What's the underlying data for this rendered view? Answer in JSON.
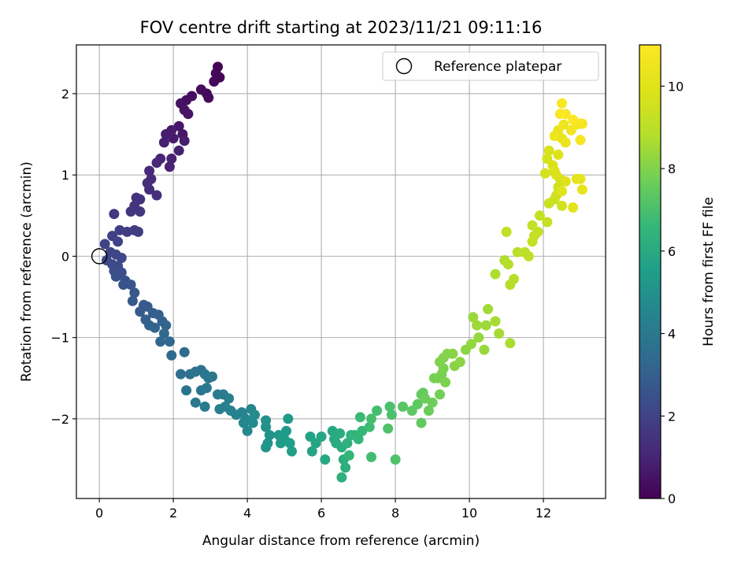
{
  "chart_data": {
    "type": "scatter",
    "title": "FOV centre drift starting at 2023/11/21 09:11:16",
    "xlabel": "Angular distance from reference (arcmin)",
    "ylabel": "Rotation from reference (arcmin)",
    "colorbar_label": "Hours from first FF file",
    "colormap": "viridis",
    "xlim": [
      -0.62,
      13.68
    ],
    "ylim": [
      -2.98,
      2.6
    ],
    "clim": [
      0,
      11
    ],
    "x_ticks": [
      0,
      2,
      4,
      6,
      8,
      10,
      12
    ],
    "x_tick_labels": [
      "0",
      "2",
      "4",
      "6",
      "8",
      "10",
      "12"
    ],
    "y_ticks": [
      -2,
      -1,
      0,
      1,
      2
    ],
    "y_tick_labels": [
      "−2",
      "−1",
      "0",
      "1",
      "2"
    ],
    "colorbar_ticks": [
      0,
      2,
      4,
      6,
      8,
      10
    ],
    "colorbar_tick_labels": [
      "0",
      "2",
      "4",
      "6",
      "8",
      "10"
    ],
    "grid": true,
    "legend": {
      "placement": "top-right",
      "label": "Reference platepar"
    },
    "reference_point": {
      "x": 0,
      "y": 0
    },
    "points": [
      [
        3.2,
        2.33,
        0.1
      ],
      [
        3.25,
        2.2,
        0.12
      ],
      [
        3.1,
        2.15,
        0.15
      ],
      [
        3.15,
        2.25,
        0.14
      ],
      [
        2.9,
        2.0,
        0.22
      ],
      [
        2.95,
        1.95,
        0.25
      ],
      [
        2.75,
        2.05,
        0.28
      ],
      [
        2.5,
        1.97,
        0.35
      ],
      [
        2.35,
        1.92,
        0.4
      ],
      [
        2.2,
        1.88,
        0.45
      ],
      [
        2.3,
        1.8,
        0.5
      ],
      [
        2.4,
        1.75,
        0.52
      ],
      [
        2.15,
        1.6,
        0.6
      ],
      [
        2.25,
        1.5,
        0.65
      ],
      [
        2.0,
        1.45,
        0.7
      ],
      [
        1.95,
        1.55,
        0.72
      ],
      [
        1.8,
        1.5,
        0.78
      ],
      [
        1.75,
        1.4,
        0.85
      ],
      [
        2.3,
        1.42,
        0.8
      ],
      [
        2.15,
        1.3,
        0.9
      ],
      [
        1.95,
        1.2,
        0.95
      ],
      [
        1.9,
        1.1,
        1.0
      ],
      [
        1.65,
        1.2,
        1.05
      ],
      [
        1.55,
        1.15,
        1.1
      ],
      [
        1.35,
        1.05,
        1.15
      ],
      [
        1.4,
        0.95,
        1.2
      ],
      [
        1.3,
        0.9,
        1.25
      ],
      [
        1.35,
        0.82,
        1.3
      ],
      [
        1.55,
        0.75,
        1.35
      ],
      [
        1.1,
        0.7,
        1.4
      ],
      [
        1.0,
        0.72,
        1.45
      ],
      [
        0.95,
        0.62,
        1.5
      ],
      [
        0.85,
        0.55,
        1.55
      ],
      [
        1.1,
        0.55,
        1.6
      ],
      [
        0.4,
        0.52,
        1.6
      ],
      [
        0.95,
        0.32,
        1.7
      ],
      [
        1.05,
        0.3,
        1.75
      ],
      [
        0.75,
        0.3,
        1.8
      ],
      [
        0.55,
        0.32,
        1.85
      ],
      [
        0.35,
        0.25,
        1.9
      ],
      [
        0.5,
        0.18,
        1.95
      ],
      [
        0.15,
        0.15,
        2.0
      ],
      [
        0.3,
        0.05,
        2.05
      ],
      [
        0.45,
        0.02,
        2.1
      ],
      [
        0.6,
        -0.02,
        2.15
      ],
      [
        0.2,
        -0.05,
        2.2
      ],
      [
        0.35,
        -0.1,
        2.25
      ],
      [
        0.5,
        -0.12,
        2.3
      ],
      [
        0.4,
        -0.18,
        2.35
      ],
      [
        0.6,
        -0.2,
        2.4
      ],
      [
        0.45,
        -0.25,
        2.45
      ],
      [
        0.7,
        -0.3,
        2.5
      ],
      [
        0.65,
        -0.35,
        2.55
      ],
      [
        0.85,
        -0.35,
        2.6
      ],
      [
        0.95,
        -0.45,
        2.65
      ],
      [
        0.9,
        -0.55,
        2.7
      ],
      [
        1.2,
        -0.6,
        2.75
      ],
      [
        1.3,
        -0.62,
        2.8
      ],
      [
        1.1,
        -0.68,
        2.85
      ],
      [
        1.45,
        -0.7,
        2.9
      ],
      [
        1.25,
        -0.78,
        2.95
      ],
      [
        1.6,
        -0.72,
        3.0
      ],
      [
        1.7,
        -0.8,
        3.05
      ],
      [
        1.35,
        -0.85,
        3.1
      ],
      [
        1.5,
        -0.88,
        3.15
      ],
      [
        1.8,
        -0.85,
        3.2
      ],
      [
        1.75,
        -0.95,
        3.25
      ],
      [
        1.65,
        -1.05,
        3.3
      ],
      [
        1.9,
        -1.05,
        3.35
      ],
      [
        1.95,
        -1.22,
        3.4
      ],
      [
        2.3,
        -1.18,
        3.5
      ],
      [
        2.2,
        -1.45,
        3.6
      ],
      [
        2.45,
        -1.45,
        3.7
      ],
      [
        2.6,
        -1.42,
        3.75
      ],
      [
        2.75,
        -1.4,
        3.8
      ],
      [
        2.85,
        -1.45,
        3.85
      ],
      [
        2.95,
        -1.5,
        3.9
      ],
      [
        3.05,
        -1.48,
        3.95
      ],
      [
        2.35,
        -1.65,
        3.8
      ],
      [
        2.75,
        -1.65,
        3.9
      ],
      [
        2.9,
        -1.62,
        3.95
      ],
      [
        2.6,
        -1.8,
        4.0
      ],
      [
        2.85,
        -1.85,
        4.05
      ],
      [
        3.2,
        -1.7,
        4.1
      ],
      [
        3.35,
        -1.7,
        4.15
      ],
      [
        3.5,
        -1.75,
        4.2
      ],
      [
        3.25,
        -1.88,
        4.25
      ],
      [
        3.4,
        -1.85,
        4.3
      ],
      [
        3.55,
        -1.9,
        4.35
      ],
      [
        3.7,
        -1.95,
        4.4
      ],
      [
        3.85,
        -1.92,
        4.45
      ],
      [
        3.95,
        -2.0,
        4.5
      ],
      [
        4.1,
        -1.88,
        4.55
      ],
      [
        3.9,
        -2.05,
        4.6
      ],
      [
        4.0,
        -2.15,
        4.65
      ],
      [
        4.15,
        -2.05,
        4.7
      ],
      [
        4.2,
        -1.95,
        4.8
      ],
      [
        4.5,
        -2.02,
        4.95
      ],
      [
        4.5,
        -2.1,
        5.0
      ],
      [
        4.6,
        -2.2,
        5.05
      ],
      [
        4.55,
        -2.3,
        5.1
      ],
      [
        4.5,
        -2.35,
        5.15
      ],
      [
        4.85,
        -2.2,
        5.25
      ],
      [
        5.1,
        -2.0,
        5.35
      ],
      [
        5.05,
        -2.15,
        5.4
      ],
      [
        5.0,
        -2.25,
        5.45
      ],
      [
        4.9,
        -2.3,
        5.45
      ],
      [
        5.15,
        -2.3,
        5.5
      ],
      [
        5.2,
        -2.4,
        5.55
      ],
      [
        5.7,
        -2.22,
        5.7
      ],
      [
        5.75,
        -2.4,
        5.75
      ],
      [
        5.85,
        -2.3,
        5.8
      ],
      [
        6.0,
        -2.22,
        5.85
      ],
      [
        6.1,
        -2.5,
        5.9
      ],
      [
        6.3,
        -2.15,
        5.95
      ],
      [
        6.35,
        -2.25,
        6.0
      ],
      [
        6.4,
        -2.3,
        6.05
      ],
      [
        6.5,
        -2.18,
        6.1
      ],
      [
        6.55,
        -2.35,
        6.15
      ],
      [
        6.6,
        -2.5,
        6.2
      ],
      [
        6.65,
        -2.6,
        6.25
      ],
      [
        6.55,
        -2.72,
        6.3
      ],
      [
        6.7,
        -2.3,
        6.35
      ],
      [
        6.8,
        -2.2,
        6.4
      ],
      [
        6.75,
        -2.45,
        6.45
      ],
      [
        6.9,
        -2.2,
        6.5
      ],
      [
        7.0,
        -2.25,
        6.55
      ],
      [
        7.1,
        -2.15,
        6.6
      ],
      [
        7.05,
        -1.98,
        6.7
      ],
      [
        7.3,
        -2.1,
        6.8
      ],
      [
        7.5,
        -1.9,
        6.9
      ],
      [
        7.35,
        -2.0,
        6.95
      ],
      [
        7.85,
        -1.85,
        7.0
      ],
      [
        7.9,
        -1.95,
        7.05
      ],
      [
        8.0,
        -2.5,
        7.1
      ],
      [
        7.35,
        -2.47,
        6.85
      ],
      [
        7.8,
        -2.12,
        7.1
      ],
      [
        8.2,
        -1.85,
        7.25
      ],
      [
        8.45,
        -1.9,
        7.35
      ],
      [
        8.6,
        -1.82,
        7.4
      ],
      [
        8.7,
        -1.7,
        7.5
      ],
      [
        8.75,
        -1.68,
        7.55
      ],
      [
        8.8,
        -1.75,
        7.6
      ],
      [
        8.9,
        -1.9,
        7.62
      ],
      [
        9.0,
        -1.8,
        7.65
      ],
      [
        8.7,
        -2.05,
        7.45
      ],
      [
        9.2,
        -1.7,
        7.75
      ],
      [
        9.15,
        -1.5,
        7.8
      ],
      [
        9.25,
        -1.45,
        7.85
      ],
      [
        9.35,
        -1.55,
        7.9
      ],
      [
        9.05,
        -1.5,
        7.85
      ],
      [
        9.3,
        -1.38,
        7.92
      ],
      [
        9.2,
        -1.3,
        7.95
      ],
      [
        9.3,
        -1.25,
        8.0
      ],
      [
        9.4,
        -1.2,
        8.05
      ],
      [
        9.55,
        -1.2,
        8.1
      ],
      [
        9.6,
        -1.35,
        8.1
      ],
      [
        9.75,
        -1.3,
        8.15
      ],
      [
        9.9,
        -1.15,
        8.2
      ],
      [
        10.05,
        -1.08,
        8.25
      ],
      [
        10.25,
        -1.0,
        8.3
      ],
      [
        10.4,
        -1.15,
        8.35
      ],
      [
        10.1,
        -0.75,
        8.4
      ],
      [
        10.2,
        -0.85,
        8.45
      ],
      [
        10.45,
        -0.85,
        8.45
      ],
      [
        10.5,
        -0.65,
        8.5
      ],
      [
        10.8,
        -0.95,
        8.55
      ],
      [
        10.7,
        -0.8,
        8.6
      ],
      [
        11.1,
        -1.07,
        8.65
      ],
      [
        10.7,
        -0.22,
        8.7
      ],
      [
        10.95,
        -0.05,
        8.75
      ],
      [
        11.05,
        -0.1,
        8.8
      ],
      [
        11.1,
        -0.35,
        8.85
      ],
      [
        11.2,
        -0.28,
        8.9
      ],
      [
        11.3,
        0.05,
        8.95
      ],
      [
        11.5,
        0.05,
        9.0
      ],
      [
        11.6,
        0.0,
        9.05
      ],
      [
        11.0,
        0.3,
        9.1
      ],
      [
        11.7,
        0.38,
        9.15
      ],
      [
        11.85,
        0.3,
        9.2
      ],
      [
        11.75,
        0.25,
        9.2
      ],
      [
        11.7,
        0.18,
        9.25
      ],
      [
        11.9,
        0.5,
        9.25
      ],
      [
        12.1,
        0.42,
        9.3
      ],
      [
        12.15,
        0.65,
        9.35
      ],
      [
        12.3,
        0.7,
        9.4
      ],
      [
        12.35,
        0.75,
        9.45
      ],
      [
        12.4,
        0.85,
        9.5
      ],
      [
        12.45,
        0.95,
        9.55
      ],
      [
        12.5,
        0.62,
        9.6
      ],
      [
        12.05,
        1.02,
        9.65
      ],
      [
        12.1,
        1.2,
        9.7
      ],
      [
        12.15,
        1.3,
        9.75
      ],
      [
        12.25,
        1.12,
        9.8
      ],
      [
        12.3,
        1.05,
        9.85
      ],
      [
        12.35,
        1.0,
        9.9
      ],
      [
        12.4,
        1.25,
        9.95
      ],
      [
        12.6,
        0.92,
        10.0
      ],
      [
        12.5,
        0.8,
        10.05
      ],
      [
        12.8,
        0.6,
        10.1
      ],
      [
        12.9,
        0.95,
        10.15
      ],
      [
        13.0,
        0.95,
        10.2
      ],
      [
        13.05,
        0.82,
        10.25
      ],
      [
        12.5,
        1.45,
        10.3
      ],
      [
        12.6,
        1.4,
        10.35
      ],
      [
        12.4,
        1.55,
        10.4
      ],
      [
        12.3,
        1.48,
        10.45
      ],
      [
        12.55,
        1.62,
        10.5
      ],
      [
        12.75,
        1.55,
        10.55
      ],
      [
        12.9,
        1.62,
        10.6
      ],
      [
        13.0,
        1.63,
        10.65
      ],
      [
        13.05,
        1.63,
        10.7
      ],
      [
        13.0,
        1.43,
        10.75
      ],
      [
        12.6,
        1.75,
        10.8
      ],
      [
        12.5,
        1.88,
        10.85
      ],
      [
        12.45,
        1.75,
        10.9
      ],
      [
        12.8,
        1.68,
        10.95
      ]
    ]
  }
}
